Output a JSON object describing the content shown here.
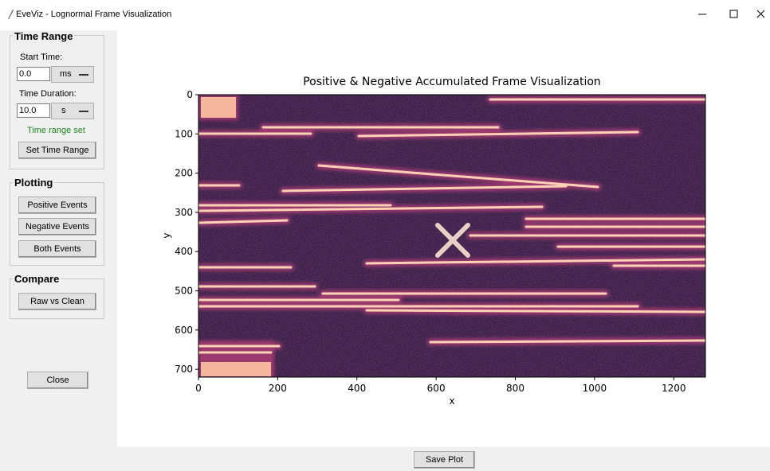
{
  "window": {
    "title": "EveViz - Lognormal Frame Visualization"
  },
  "sidebar": {
    "time_range": {
      "title": "Time Range",
      "start_label": "Start Time:",
      "start_value": "0.0",
      "start_unit": "ms",
      "duration_label": "Time Duration:",
      "duration_value": "10.0",
      "duration_unit": "s",
      "status": "Time range set",
      "button": "Set Time Range"
    },
    "plotting": {
      "title": "Plotting",
      "buttons": [
        "Positive Events",
        "Negative Events",
        "Both Events"
      ]
    },
    "compare": {
      "title": "Compare",
      "buttons": [
        "Raw vs Clean"
      ]
    },
    "close": "Close"
  },
  "chart_data": {
    "type": "image",
    "title": "Positive & Negative Accumulated Frame Visualization",
    "x_label": "x",
    "y_label": "y",
    "xlim": [
      0,
      1280
    ],
    "ylim": [
      720,
      0
    ],
    "xticks": [
      0,
      200,
      400,
      600,
      800,
      1000,
      1200
    ],
    "yticks": [
      0,
      100,
      200,
      300,
      400,
      500,
      600,
      700
    ]
  },
  "save_button": "Save Plot"
}
